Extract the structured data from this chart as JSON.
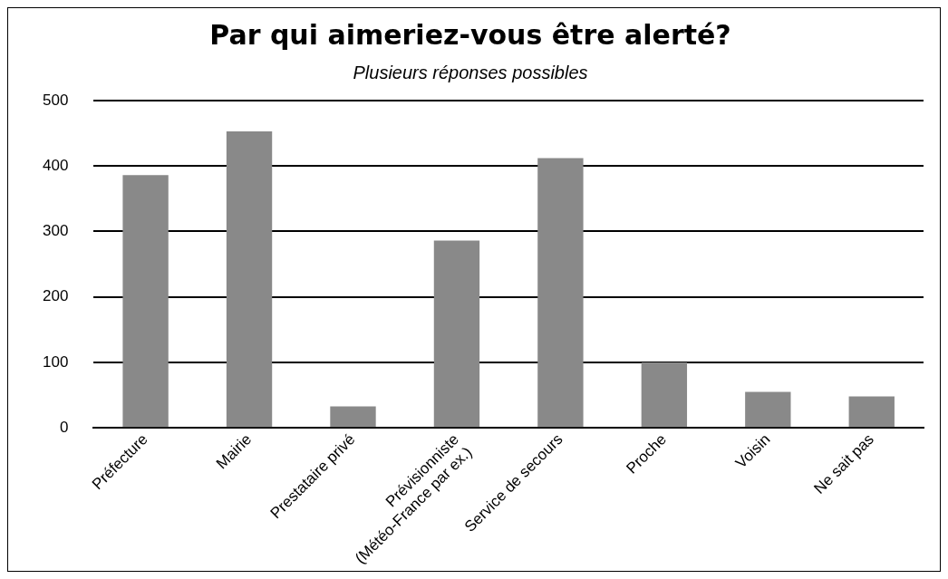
{
  "chart_data": {
    "type": "bar",
    "title": "Par qui aimeriez-vous être alerté?",
    "subtitle": "Plusieurs réponses possibles",
    "categories": [
      "Préfecture",
      "Mairie",
      "Prestataire privé",
      "Prévisionniste\n(Météo-France par ex.)",
      "Service de secours",
      "Proche",
      "Voisin",
      "Ne sait pas"
    ],
    "values": [
      386,
      453,
      33,
      286,
      412,
      100,
      55,
      48
    ],
    "color": "#898989",
    "ylim": [
      0,
      500
    ],
    "yticks": [
      0,
      100,
      200,
      300,
      400,
      500
    ],
    "grid": "y",
    "legend": false
  }
}
